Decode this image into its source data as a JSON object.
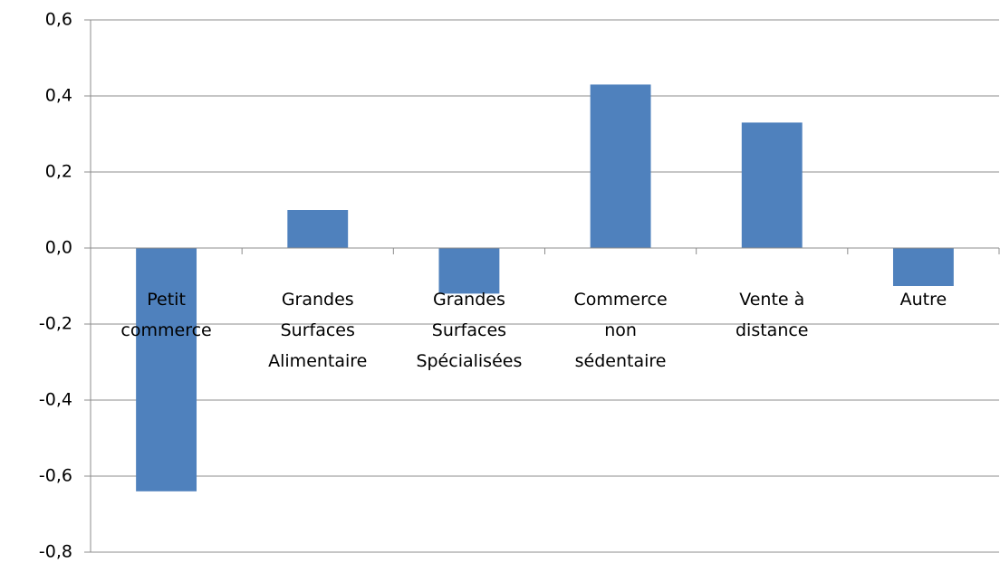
{
  "chart_data": {
    "type": "bar",
    "categories": [
      "Petit commerce",
      "Grandes Surfaces Alimentaire",
      "Grandes Surfaces Spécialisées",
      "Commerce non sédentaire",
      "Vente à distance",
      "Autre"
    ],
    "values": [
      -0.64,
      0.1,
      -0.12,
      0.43,
      0.33,
      -0.1
    ],
    "color": "#4f81bd",
    "ylim": [
      -0.8,
      0.6
    ],
    "yticks": [
      {
        "value": -0.8,
        "label": "-0,8"
      },
      {
        "value": -0.6,
        "label": "-0,6"
      },
      {
        "value": -0.4,
        "label": "-0,4"
      },
      {
        "value": -0.2,
        "label": "-0,2"
      },
      {
        "value": 0,
        "label": "0,0"
      },
      {
        "value": 0.2,
        "label": "0,2"
      },
      {
        "value": 0.4,
        "label": "0,4"
      },
      {
        "value": 0.6,
        "label": "0,6"
      }
    ],
    "grid": true
  }
}
